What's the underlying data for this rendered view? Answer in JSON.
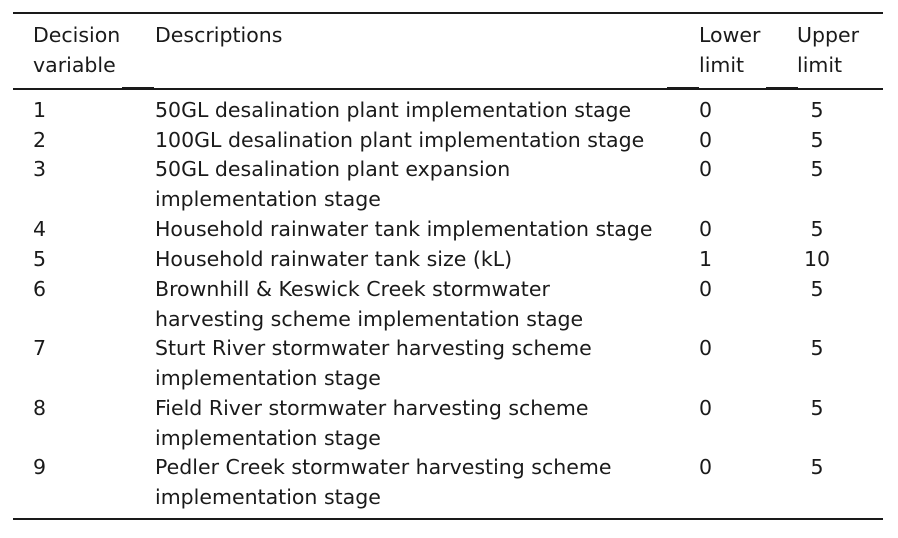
{
  "table": {
    "headers": {
      "variable": [
        "Decision",
        "variable"
      ],
      "description": "Descriptions",
      "lower": [
        "Lower",
        "limit"
      ],
      "upper": [
        "Upper",
        "limit"
      ]
    },
    "rows": [
      {
        "id": "1",
        "desc": [
          "50GL desalination plant implementation stage"
        ],
        "lower": "0",
        "upper": "5"
      },
      {
        "id": "2",
        "desc": [
          "100GL desalination plant implementation stage"
        ],
        "lower": "0",
        "upper": "5"
      },
      {
        "id": "3",
        "desc": [
          "50GL desalination plant expansion",
          "implementation stage"
        ],
        "lower": "0",
        "upper": "5"
      },
      {
        "id": "4",
        "desc": [
          "Household rainwater tank implementation stage"
        ],
        "lower": "0",
        "upper": "5"
      },
      {
        "id": "5",
        "desc": [
          "Household rainwater tank size (kL)"
        ],
        "lower": "1",
        "upper": "10"
      },
      {
        "id": "6",
        "desc": [
          "Brownhill & Keswick Creek stormwater",
          "harvesting scheme implementation stage"
        ],
        "lower": "0",
        "upper": "5"
      },
      {
        "id": "7",
        "desc": [
          "Sturt River stormwater harvesting scheme",
          "implementation stage"
        ],
        "lower": "0",
        "upper": "5"
      },
      {
        "id": "8",
        "desc": [
          "Field River stormwater harvesting scheme",
          "implementation stage"
        ],
        "lower": "0",
        "upper": "5"
      },
      {
        "id": "9",
        "desc": [
          "Pedler Creek stormwater harvesting scheme",
          "implementation stage"
        ],
        "lower": "0",
        "upper": "5"
      }
    ]
  }
}
